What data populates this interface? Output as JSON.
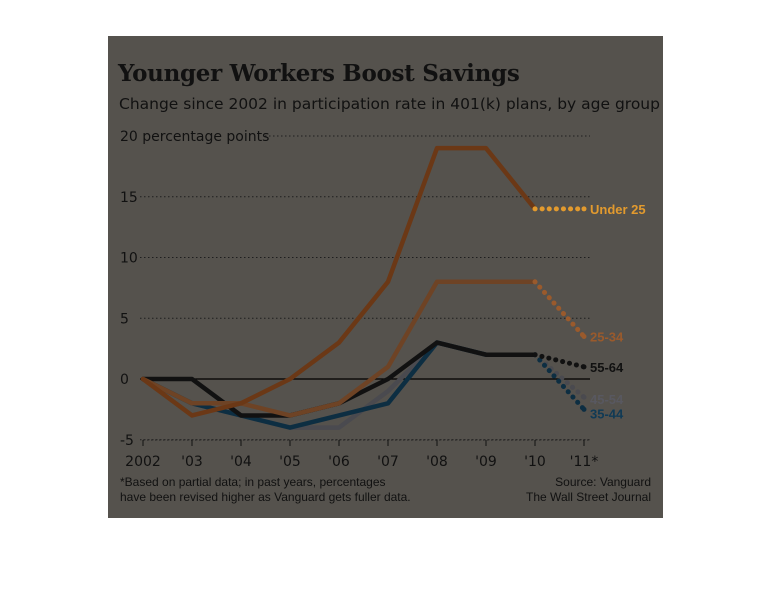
{
  "title": "Younger Workers Boost Savings",
  "subtitle": "Change since 2002 in participation rate in 401(k) plans, by age group",
  "footnote": {
    "line1": "*Based on partial data; in past years, percentages",
    "line2": "have been revised higher as Vanguard gets fuller data."
  },
  "source": {
    "line1": "Source: Vanguard",
    "line2": "The Wall Street Journal"
  },
  "colors": {
    "background": "#55524d",
    "under25": "#6b3816",
    "under25_labels": "#e29a2e",
    "age25_34": "#6e4325",
    "age25_34_labels": "#9a5a2c",
    "age55_64": "#111111",
    "age45_54": "#4a4a4f",
    "age45_54_labels": "#585860",
    "age35_44": "#0d2e42",
    "age35_44_labels": "#103a55",
    "zero_line": "#000000",
    "gridlines": "#1e1e1e"
  },
  "chart_data": {
    "type": "line",
    "title": "Younger Workers Boost Savings",
    "subtitle": "Change since 2002 in participation rate in 401(k) plans, by age group",
    "ylabel": "percentage points",
    "ylim": [
      -5,
      20
    ],
    "yticks": [
      {
        "value": 20,
        "label": "20 percentage points"
      },
      {
        "value": 15,
        "label": "15"
      },
      {
        "value": 10,
        "label": "10"
      },
      {
        "value": 5,
        "label": "5"
      },
      {
        "value": 0,
        "label": "0"
      },
      {
        "value": -5,
        "label": "-5"
      }
    ],
    "x": [
      2002,
      2003,
      2004,
      2005,
      2006,
      2007,
      2008,
      2009,
      2010,
      2011
    ],
    "xtick_labels": [
      "2002",
      "'03",
      "'04",
      "'05",
      "'06",
      "'07",
      "'08",
      "'09",
      "'10",
      "'11*"
    ],
    "grid": "horizontal dotted",
    "projected_from": 2010,
    "series": [
      {
        "name": "45-54",
        "values": [
          0,
          -2,
          -3,
          -4,
          -4,
          -1,
          3,
          2,
          2,
          -1.5
        ]
      },
      {
        "name": "35-44",
        "values": [
          0,
          -2,
          -3,
          -4,
          -3,
          -2,
          3,
          2,
          2,
          -2.5
        ]
      },
      {
        "name": "55-64",
        "values": [
          0,
          0,
          -3,
          -3,
          -2,
          0,
          3,
          2,
          2,
          1
        ]
      },
      {
        "name": "25-34",
        "values": [
          0,
          -2,
          -2,
          -3,
          -2,
          1,
          8,
          8,
          8,
          3.5
        ]
      },
      {
        "name": "Under 25",
        "values": [
          0,
          -3,
          -2,
          0,
          3,
          8,
          19,
          19,
          14,
          14
        ]
      }
    ]
  }
}
